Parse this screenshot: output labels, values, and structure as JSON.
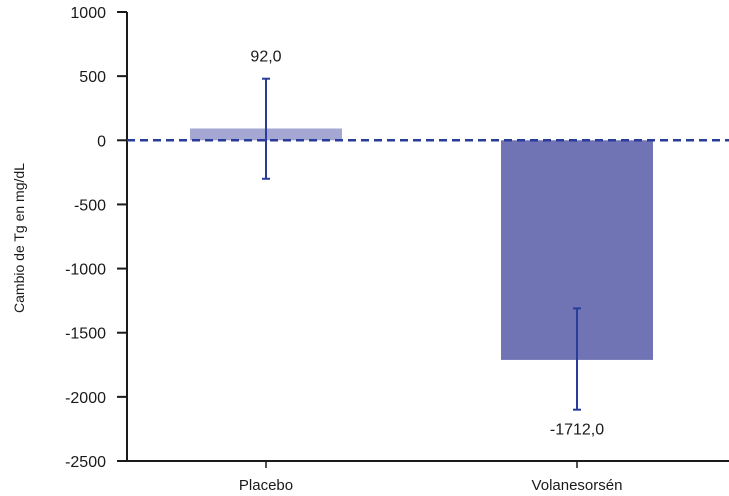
{
  "chart_data": {
    "type": "bar",
    "categories": [
      "Placebo",
      "Volanesorsén"
    ],
    "values": [
      92.0,
      -1712.0
    ],
    "value_labels": [
      "92,0",
      "-1712,0"
    ],
    "error_bars": [
      {
        "low": -300,
        "high": 480
      },
      {
        "low": -2100,
        "high": -1310
      }
    ],
    "bar_colors": [
      "#a5a7d3",
      "#7174b4"
    ],
    "error_bar_color": "#2a3c9a",
    "zero_line_color": "#2a3c9a",
    "zero_line_style": "dashed",
    "ylabel": "Cambio de Tg en mg/dL",
    "xlabel": "",
    "ylim": [
      -2500,
      1000
    ],
    "yticks": [
      1000,
      500,
      0,
      -500,
      -1000,
      -1500,
      -2000,
      -2500
    ],
    "grid": false,
    "legend": "none"
  }
}
